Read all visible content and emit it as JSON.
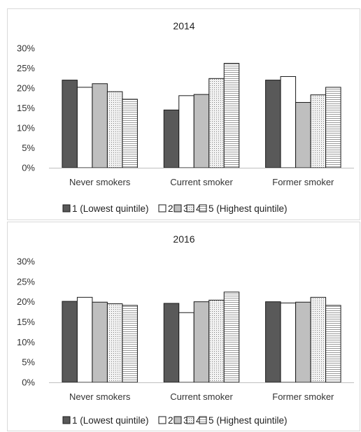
{
  "colors": {
    "q1": "#595959",
    "q2": "#ffffff",
    "q3": "#bfbfbf",
    "q4_pattern": "dotted-light",
    "q5_pattern": "horizontal-stripes"
  },
  "chart_data": [
    {
      "type": "bar",
      "title": "2014",
      "categories": [
        "Never smokers",
        "Current smoker",
        "Former smoker"
      ],
      "series": [
        {
          "name": "1 (Lowest quintile)",
          "values": [
            22.0,
            14.5,
            22.0
          ]
        },
        {
          "name": "2",
          "values": [
            20.2,
            18.1,
            22.9
          ]
        },
        {
          "name": "3",
          "values": [
            21.1,
            18.4,
            16.4
          ]
        },
        {
          "name": "4",
          "values": [
            19.1,
            22.4,
            18.3
          ]
        },
        {
          "name": "5 (Highest quintile)",
          "values": [
            17.2,
            26.2,
            20.2
          ]
        }
      ],
      "yticks": [
        "0%",
        "5%",
        "10%",
        "15%",
        "20%",
        "25%",
        "30%"
      ],
      "ylim": [
        0,
        30
      ],
      "legend_position": "bottom",
      "grid": false
    },
    {
      "type": "bar",
      "title": "2016",
      "categories": [
        "Never smokers",
        "Current smoker",
        "Former smoker"
      ],
      "series": [
        {
          "name": "1 (Lowest quintile)",
          "values": [
            20.1,
            19.6,
            20.0
          ]
        },
        {
          "name": "2",
          "values": [
            21.1,
            17.3,
            19.7
          ]
        },
        {
          "name": "3",
          "values": [
            19.9,
            20.0,
            19.9
          ]
        },
        {
          "name": "4",
          "values": [
            19.5,
            20.4,
            21.1
          ]
        },
        {
          "name": "5 (Highest quintile)",
          "values": [
            19.1,
            22.4,
            19.1
          ]
        }
      ],
      "yticks": [
        "0%",
        "5%",
        "10%",
        "15%",
        "20%",
        "25%",
        "30%"
      ],
      "ylim": [
        0,
        30
      ],
      "legend_position": "bottom",
      "grid": false
    }
  ]
}
